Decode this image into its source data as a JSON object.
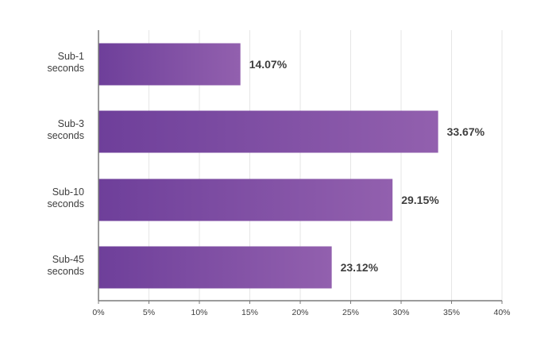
{
  "chart_data": {
    "type": "bar",
    "orientation": "horizontal",
    "categories": [
      [
        "Sub-1",
        "seconds"
      ],
      [
        "Sub-3",
        "seconds"
      ],
      [
        "Sub-10",
        "seconds"
      ],
      [
        "Sub-45",
        "seconds"
      ]
    ],
    "values": [
      14.07,
      33.67,
      29.15,
      23.12
    ],
    "value_labels": [
      "14.07%",
      "33.67%",
      "29.15%",
      "23.12%"
    ],
    "x_ticks": [
      "0%",
      "5%",
      "10%",
      "15%",
      "20%",
      "25%",
      "30%",
      "35%",
      "40%"
    ],
    "xlim": [
      0,
      40
    ],
    "grid": "vertical",
    "title": "",
    "xlabel": "",
    "ylabel": "",
    "colors": {
      "bar_start": "#6e3f9a",
      "bar_end": "#9260ae",
      "grid": "#e6e6e6",
      "axis": "#7a7a7a"
    }
  }
}
